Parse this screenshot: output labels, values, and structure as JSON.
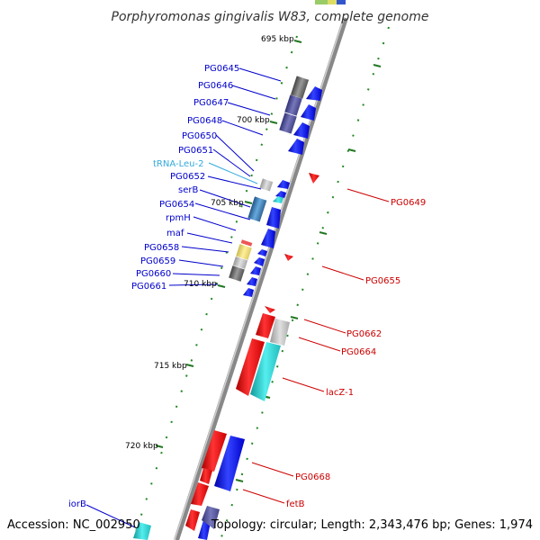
{
  "header": {
    "title": "Porphyromonas gingivalis W83, complete genome"
  },
  "footer": {
    "accession": "Accession: NC_002950",
    "summary": "Topology: circular; Length: 2,343,476 bp; Genes: 1,974"
  },
  "colors": {
    "forward_gene": "#0000ee",
    "reverse_gene": "#ee0000",
    "trna": "#33aacc",
    "cyan_gene": "#22cccc",
    "backbone": "#888888",
    "tick": "#227722",
    "gray_feature": "#707070"
  },
  "ticks": [
    {
      "label": "695 kbp"
    },
    {
      "label": "700 kbp"
    },
    {
      "label": "705 kbp"
    },
    {
      "label": "710 kbp"
    },
    {
      "label": "715 kbp"
    },
    {
      "label": "720 kbp"
    }
  ],
  "left_labels": [
    {
      "name": "PG0645",
      "color": "#0000cc"
    },
    {
      "name": "PG0646",
      "color": "#0000cc"
    },
    {
      "name": "PG0647",
      "color": "#0000cc"
    },
    {
      "name": "PG0648",
      "color": "#0000cc"
    },
    {
      "name": "PG0650",
      "color": "#0000cc"
    },
    {
      "name": "PG0651",
      "color": "#0000cc"
    },
    {
      "name": "tRNA-Leu-2",
      "color": "#33aadd"
    },
    {
      "name": "PG0652",
      "color": "#0000cc"
    },
    {
      "name": "serB",
      "color": "#0000cc"
    },
    {
      "name": "PG0654",
      "color": "#0000cc"
    },
    {
      "name": "rpmH",
      "color": "#0000cc"
    },
    {
      "name": "maf",
      "color": "#0000cc"
    },
    {
      "name": "PG0658",
      "color": "#0000cc"
    },
    {
      "name": "PG0659",
      "color": "#0000cc"
    },
    {
      "name": "PG0660",
      "color": "#0000cc"
    },
    {
      "name": "PG0661",
      "color": "#0000cc"
    },
    {
      "name": "iorB",
      "color": "#0000cc"
    }
  ],
  "right_labels": [
    {
      "name": "PG0649",
      "color": "#cc0000"
    },
    {
      "name": "PG0655",
      "color": "#cc0000"
    },
    {
      "name": "PG0662",
      "color": "#cc0000"
    },
    {
      "name": "PG0664",
      "color": "#cc0000"
    },
    {
      "name": "lacZ-1",
      "color": "#cc0000"
    },
    {
      "name": "PG0668",
      "color": "#cc0000"
    },
    {
      "name": "fetB",
      "color": "#cc0000"
    }
  ]
}
